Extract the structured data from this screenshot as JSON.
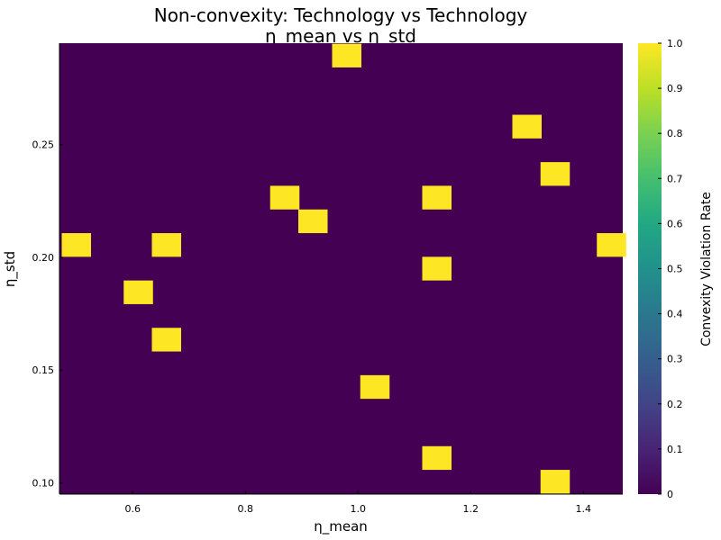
{
  "chart_data": {
    "type": "heatmap",
    "title": "Non-convexity: Technology vs Technology",
    "subtitle": "η_mean vs η_std",
    "xlabel": "η_mean",
    "ylabel": "η_std",
    "colorbar_label": "Convexity Violation Rate",
    "xlim": [
      0.47,
      1.47
    ],
    "ylim": [
      0.095,
      0.295
    ],
    "x_ticks": [
      0.6,
      0.8,
      1.0,
      1.2,
      1.4
    ],
    "x_tick_labels": [
      "0.6",
      "0.8",
      "1.0",
      "1.2",
      "1.4"
    ],
    "y_ticks": [
      0.1,
      0.15,
      0.2,
      0.25
    ],
    "y_tick_labels": [
      "0.10",
      "0.15",
      "0.20",
      "0.25"
    ],
    "colorbar_range": [
      0,
      1
    ],
    "colorbar_ticks": [
      0,
      0.1,
      0.2,
      0.3,
      0.4,
      0.5,
      0.6,
      0.7,
      0.8,
      0.9,
      1.0
    ],
    "colorbar_tick_labels": [
      "0",
      "0.1",
      "0.2",
      "0.3",
      "0.4",
      "0.5",
      "0.6",
      "0.7",
      "0.8",
      "0.9",
      "1.0"
    ],
    "colormap": "viridis",
    "background_value": 0,
    "cell_width": 0.052,
    "cell_height": 0.0105,
    "cells": [
      {
        "x": 0.98,
        "y": 0.2895,
        "value": 1
      },
      {
        "x": 1.3,
        "y": 0.258,
        "value": 1
      },
      {
        "x": 1.35,
        "y": 0.237,
        "value": 1
      },
      {
        "x": 0.87,
        "y": 0.2265,
        "value": 1
      },
      {
        "x": 1.14,
        "y": 0.2265,
        "value": 1
      },
      {
        "x": 0.92,
        "y": 0.216,
        "value": 1
      },
      {
        "x": 0.5,
        "y": 0.2055,
        "value": 1
      },
      {
        "x": 0.66,
        "y": 0.2055,
        "value": 1
      },
      {
        "x": 1.45,
        "y": 0.2055,
        "value": 1
      },
      {
        "x": 1.14,
        "y": 0.195,
        "value": 1
      },
      {
        "x": 0.61,
        "y": 0.1845,
        "value": 1
      },
      {
        "x": 0.66,
        "y": 0.1635,
        "value": 1
      },
      {
        "x": 1.03,
        "y": 0.1425,
        "value": 1
      },
      {
        "x": 1.14,
        "y": 0.111,
        "value": 1
      },
      {
        "x": 1.35,
        "y": 0.1005,
        "value": 1
      }
    ],
    "colors": {
      "low": "#440154",
      "high": "#fde725"
    }
  }
}
